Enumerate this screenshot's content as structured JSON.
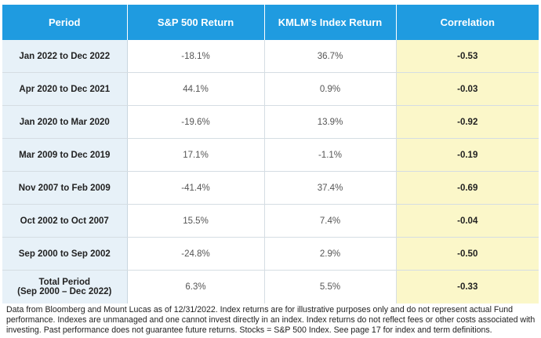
{
  "table": {
    "headers": [
      "Period",
      "S&P 500 Return",
      "KMLM’s Index Return",
      "Correlation"
    ],
    "rows": [
      {
        "period": "Jan 2022 to Dec 2022",
        "sp500": "-18.1%",
        "kmlm": "36.7%",
        "correlation": "-0.53"
      },
      {
        "period": "Apr 2020 to Dec 2021",
        "sp500": "44.1%",
        "kmlm": "0.9%",
        "correlation": "-0.03"
      },
      {
        "period": "Jan 2020 to Mar 2020",
        "sp500": "-19.6%",
        "kmlm": "13.9%",
        "correlation": "-0.92"
      },
      {
        "period": "Mar 2009 to Dec 2019",
        "sp500": "17.1%",
        "kmlm": "-1.1%",
        "correlation": "-0.19"
      },
      {
        "period": "Nov 2007 to Feb 2009",
        "sp500": "-41.4%",
        "kmlm": "37.4%",
        "correlation": "-0.69"
      },
      {
        "period": "Oct 2002 to Oct 2007",
        "sp500": "15.5%",
        "kmlm": "7.4%",
        "correlation": "-0.04"
      },
      {
        "period": "Sep 2000 to Sep 2002",
        "sp500": "-24.8%",
        "kmlm": "2.9%",
        "correlation": "-0.50"
      }
    ],
    "total": {
      "period_line1": "Total Period",
      "period_line2": "(Sep 2000 – Dec 2022)",
      "sp500": "6.3%",
      "kmlm": "5.5%",
      "correlation": "-0.33"
    }
  },
  "footnote": "Data from Bloomberg and Mount Lucas as of 12/31/2022. Index returns are for illustrative purposes only and do not represent actual Fund performance. Indexes are unmanaged and one cannot invest directly in an index. Index returns do not reflect fees or other costs associated with investing. Past performance does not guarantee future returns. Stocks = S&P 500 Index. See page 17 for index and term definitions."
}
